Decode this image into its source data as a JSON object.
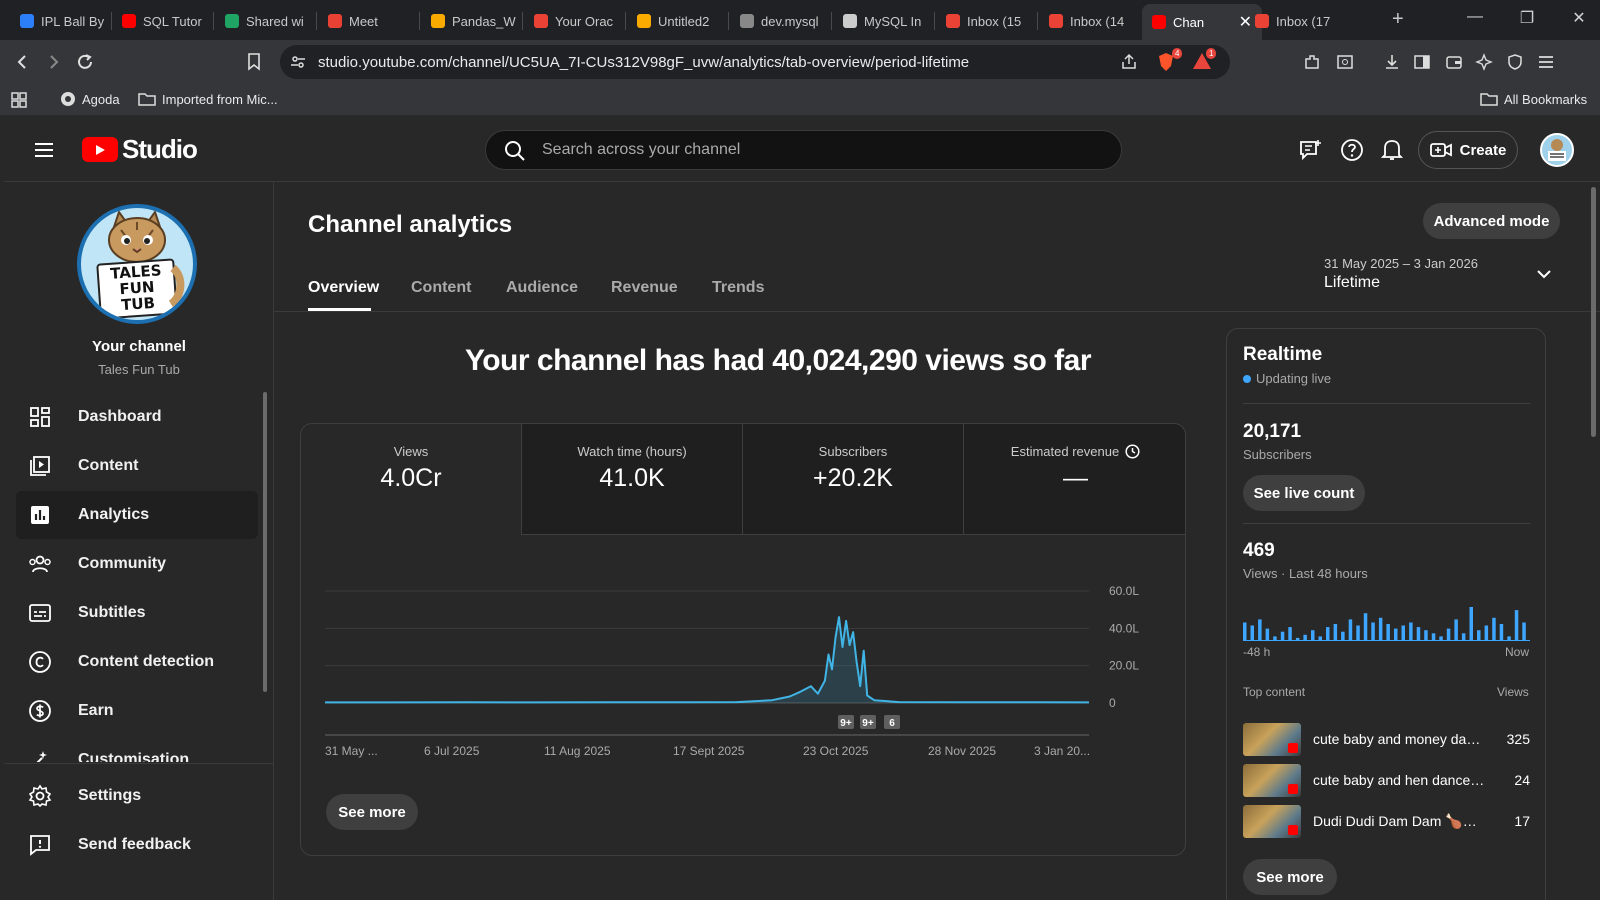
{
  "browser": {
    "tabs": [
      {
        "label": "IPL Ball By",
        "icon": "k-icon",
        "color": "#2d7ff9"
      },
      {
        "label": "SQL Tutor",
        "icon": "youtube-icon",
        "color": "#ff0000"
      },
      {
        "label": "Shared wi",
        "icon": "drive-icon",
        "color": "#1fa463"
      },
      {
        "label": "Meet",
        "icon": "meet-icon",
        "color": "#e94235"
      },
      {
        "label": "Pandas_W",
        "icon": "colab-icon",
        "color": "#f9ab00"
      },
      {
        "label": "Your Orac",
        "icon": "gmail-icon",
        "color": "#ea4335"
      },
      {
        "label": "Untitled2",
        "icon": "colab-icon",
        "color": "#f9ab00"
      },
      {
        "label": "dev.mysql",
        "icon": "page-icon",
        "color": "#888888"
      },
      {
        "label": "MySQL In",
        "icon": "openai-icon",
        "color": "#cccccc"
      },
      {
        "label": "Inbox (15",
        "icon": "gmail-icon",
        "color": "#ea4335"
      },
      {
        "label": "Inbox (14",
        "icon": "gmail-icon",
        "color": "#ea4335"
      },
      {
        "label": "Chan",
        "icon": "youtube-icon",
        "color": "#ff0000"
      },
      {
        "label": "Inbox (17",
        "icon": "gmail-icon",
        "color": "#ea4335"
      }
    ],
    "url": "studio.youtube.com/channel/UC5UA_7I-CUs312V98gF_uvw/analytics/tab-overview/period-lifetime",
    "shield_badge": "4",
    "alert_badge": "1",
    "bookmarks": [
      {
        "label": "Agoda",
        "icon": "globe-icon"
      },
      {
        "label": "Imported from Mic...",
        "icon": "folder-icon"
      }
    ],
    "all_bookmarks": "All Bookmarks"
  },
  "header": {
    "logo_text": "Studio",
    "search_placeholder": "Search across your channel",
    "create_label": "Create"
  },
  "sidebar": {
    "channel_title": "Your channel",
    "channel_name": "Tales Fun Tub",
    "avatar_text": [
      "TALES",
      "FUN",
      "TUB"
    ],
    "items": [
      {
        "label": "Dashboard",
        "icon": "dashboard-icon"
      },
      {
        "label": "Content",
        "icon": "content-icon"
      },
      {
        "label": "Analytics",
        "icon": "analytics-icon"
      },
      {
        "label": "Community",
        "icon": "community-icon"
      },
      {
        "label": "Subtitles",
        "icon": "subtitles-icon"
      },
      {
        "label": "Content detection",
        "icon": "copyright-icon"
      },
      {
        "label": "Earn",
        "icon": "earn-icon"
      },
      {
        "label": "Customisation",
        "icon": "customisation-icon"
      }
    ],
    "bottom_items": [
      {
        "label": "Settings",
        "icon": "settings-icon"
      },
      {
        "label": "Send feedback",
        "icon": "feedback-icon"
      }
    ]
  },
  "main": {
    "title": "Channel analytics",
    "advanced_mode": "Advanced mode",
    "tabs": [
      "Overview",
      "Content",
      "Audience",
      "Revenue",
      "Trends"
    ],
    "period_range": "31 May 2025 – 3 Jan 2026",
    "period_label": "Lifetime",
    "headline": "Your channel has had 40,024,290 views so far",
    "metrics": [
      {
        "label": "Views",
        "value": "4.0Cr"
      },
      {
        "label": "Watch time (hours)",
        "value": "41.0K"
      },
      {
        "label": "Subscribers",
        "value": "+20.2K"
      },
      {
        "label": "Estimated revenue",
        "value": "—"
      }
    ],
    "see_more": "See more"
  },
  "chart_data": {
    "type": "area",
    "metric": "Views",
    "x_tick_labels": [
      "31 May ...",
      "6 Jul 2025",
      "11 Aug 2025",
      "17 Sept 2025",
      "23 Oct 2025",
      "28 Nov 2025",
      "3 Jan 20..."
    ],
    "y_tick_labels": [
      "0",
      "20.0L",
      "40.0L",
      "60.0L"
    ],
    "ylim": [
      0,
      60
    ],
    "y_unit": "L",
    "x_range": [
      "2025-05-31",
      "2026-01-03"
    ],
    "series": [
      {
        "values": [
          [
            "2025-05-31",
            0.3
          ],
          [
            "2025-06-20",
            0.3
          ],
          [
            "2025-07-10",
            0.4
          ],
          [
            "2025-07-30",
            0.3
          ],
          [
            "2025-08-20",
            0.4
          ],
          [
            "2025-09-10",
            0.4
          ],
          [
            "2025-09-25",
            0.5
          ],
          [
            "2025-10-05",
            1.5
          ],
          [
            "2025-10-10",
            3.5
          ],
          [
            "2025-10-13",
            6
          ],
          [
            "2025-10-16",
            9
          ],
          [
            "2025-10-18",
            5
          ],
          [
            "2025-10-20",
            12
          ],
          [
            "2025-10-21",
            26
          ],
          [
            "2025-10-22",
            18
          ],
          [
            "2025-10-23",
            35
          ],
          [
            "2025-10-24",
            46
          ],
          [
            "2025-10-25",
            30
          ],
          [
            "2025-10-26",
            44
          ],
          [
            "2025-10-27",
            31
          ],
          [
            "2025-10-28",
            38
          ],
          [
            "2025-10-29",
            22
          ],
          [
            "2025-10-30",
            9
          ],
          [
            "2025-10-31",
            28
          ],
          [
            "2025-11-01",
            4
          ],
          [
            "2025-11-03",
            1.5
          ],
          [
            "2025-11-10",
            0.5
          ],
          [
            "2025-11-30",
            0.4
          ],
          [
            "2025-12-20",
            0.4
          ],
          [
            "2026-01-03",
            0.3
          ]
        ]
      }
    ],
    "annotations": [
      "9+",
      "9+",
      "6"
    ],
    "grid": true
  },
  "realtime": {
    "title": "Realtime",
    "status": "Updating live",
    "subscribers": "20,171",
    "subscribers_label": "Subscribers",
    "live_count_button": "See live count",
    "views": "469",
    "views_label": "Views · Last 48 hours",
    "axis_start": "-48 h",
    "axis_end": "Now",
    "hourly_views": [
      12,
      10,
      14,
      8,
      3,
      6,
      9,
      2,
      4,
      7,
      3,
      9,
      11,
      6,
      14,
      10,
      18,
      12,
      15,
      11,
      8,
      10,
      12,
      9,
      7,
      5,
      3,
      8,
      14,
      5,
      22,
      7,
      10,
      15,
      11,
      3,
      20,
      12
    ],
    "top_content_label": "Top content",
    "views_column": "Views",
    "top_content": [
      {
        "title": "cute baby and money danc...",
        "views": "325"
      },
      {
        "title": "cute baby and hen dance #f...",
        "views": "24"
      },
      {
        "title": "Dudi Dudi Dam Dam 🍗😂| ...",
        "views": "17"
      }
    ],
    "see_more": "See more"
  },
  "colors": {
    "accent": "#3ea6ff",
    "chart_line": "#41b4e6",
    "brand_red": "#ff0000",
    "background": "#282828"
  }
}
